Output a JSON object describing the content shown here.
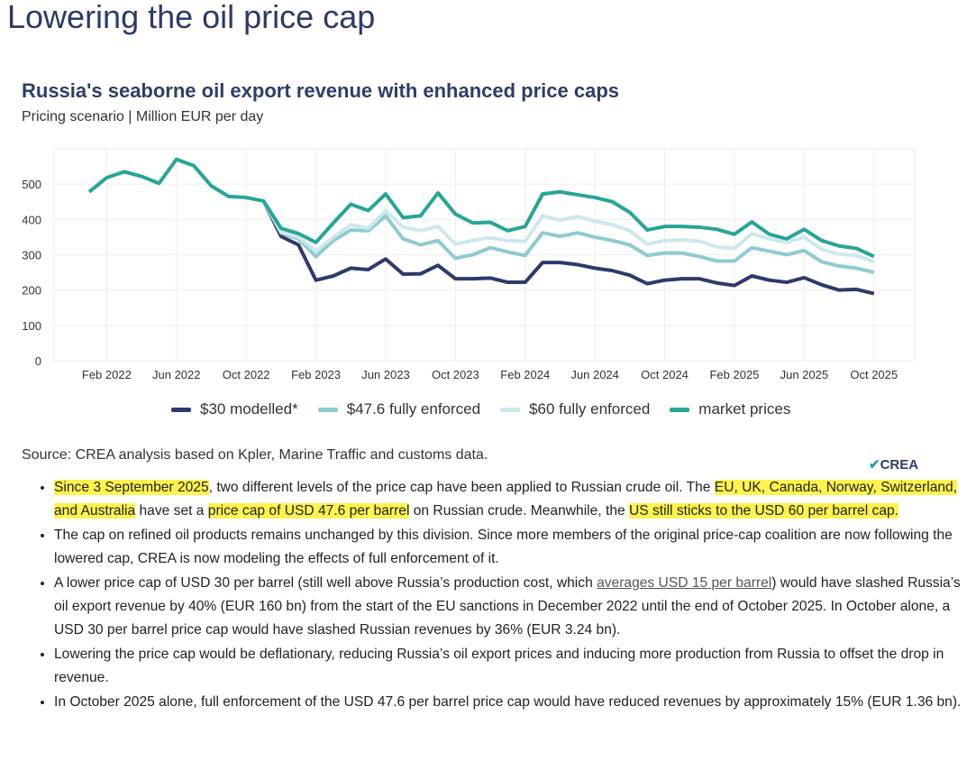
{
  "page_title": "Lowering the oil price cap",
  "chart_data": {
    "type": "line",
    "title": "Russia's seaborne oil export revenue with enhanced price caps",
    "subtitle": "Pricing scenario | Million EUR per day",
    "ylim": [
      0,
      600
    ],
    "yticks": [
      0,
      100,
      200,
      300,
      400,
      500
    ],
    "grid": true,
    "legend_position": "bottom",
    "x": [
      "2022-01",
      "2022-02",
      "2022-03",
      "2022-04",
      "2022-05",
      "2022-06",
      "2022-07",
      "2022-08",
      "2022-09",
      "2022-10",
      "2022-11",
      "2022-12",
      "2023-01",
      "2023-02",
      "2023-03",
      "2023-04",
      "2023-05",
      "2023-06",
      "2023-07",
      "2023-08",
      "2023-09",
      "2023-10",
      "2023-11",
      "2023-12",
      "2024-01",
      "2024-02",
      "2024-03",
      "2024-04",
      "2024-05",
      "2024-06",
      "2024-07",
      "2024-08",
      "2024-09",
      "2024-10",
      "2024-11",
      "2024-12",
      "2025-01",
      "2025-02",
      "2025-03",
      "2025-04",
      "2025-05",
      "2025-06",
      "2025-07",
      "2025-08",
      "2025-09",
      "2025-10"
    ],
    "xtick_labels": [
      "Feb 2022",
      "Jun 2022",
      "Oct 2022",
      "Feb 2023",
      "Jun 2023",
      "Oct 2023",
      "Feb 2024",
      "Jun 2024",
      "Oct 2024",
      "Feb 2025",
      "Jun 2025",
      "Oct 2025"
    ],
    "xtick_months": [
      "2022-02",
      "2022-06",
      "2022-10",
      "2023-02",
      "2023-06",
      "2023-10",
      "2024-02",
      "2024-06",
      "2024-10",
      "2025-02",
      "2025-06",
      "2025-10"
    ],
    "series": [
      {
        "name": "$30 modelled*",
        "color": "#2e3a6b",
        "values": [
          null,
          null,
          null,
          null,
          null,
          null,
          null,
          null,
          null,
          null,
          452,
          352,
          328,
          228,
          240,
          262,
          258,
          288,
          245,
          246,
          270,
          232,
          232,
          234,
          222,
          222,
          278,
          278,
          272,
          262,
          255,
          242,
          218,
          228,
          232,
          232,
          220,
          213,
          240,
          228,
          222,
          235,
          215,
          200,
          202,
          190
        ]
      },
      {
        "name": "$47.6 fully enforced",
        "color": "#8ecbd0",
        "values": [
          null,
          null,
          null,
          null,
          null,
          null,
          null,
          null,
          null,
          null,
          452,
          362,
          345,
          295,
          340,
          370,
          368,
          410,
          345,
          328,
          340,
          290,
          300,
          320,
          308,
          298,
          362,
          352,
          362,
          350,
          340,
          328,
          298,
          305,
          305,
          295,
          282,
          282,
          320,
          310,
          300,
          312,
          280,
          268,
          262,
          250
        ]
      },
      {
        "name": "$60 fully enforced",
        "color": "#cde8ec",
        "values": [
          null,
          null,
          null,
          null,
          null,
          null,
          null,
          null,
          null,
          null,
          452,
          365,
          350,
          310,
          350,
          385,
          375,
          425,
          378,
          368,
          380,
          330,
          340,
          348,
          340,
          338,
          410,
          398,
          408,
          395,
          385,
          368,
          330,
          340,
          342,
          338,
          322,
          318,
          360,
          345,
          335,
          350,
          315,
          302,
          298,
          280
        ]
      },
      {
        "name": "market prices",
        "color": "#27a596",
        "values": [
          478,
          518,
          535,
          522,
          502,
          570,
          552,
          495,
          465,
          462,
          452,
          375,
          360,
          335,
          390,
          443,
          425,
          472,
          405,
          410,
          475,
          415,
          390,
          392,
          368,
          380,
          472,
          478,
          470,
          462,
          450,
          420,
          370,
          380,
          380,
          378,
          372,
          358,
          393,
          358,
          345,
          372,
          340,
          325,
          318,
          295
        ]
      }
    ]
  },
  "source": "Source: CREA analysis based on Kpler, Marine Traffic and customs data.",
  "logo": {
    "mark": "✔",
    "text": "CREA"
  },
  "bullets": [
    [
      {
        "t": "Since 3 September 2025",
        "hl": true
      },
      {
        "t": ", two different levels of the price cap have been applied to Russian crude oil. The "
      },
      {
        "t": "EU, UK, Canada, Norway, Switzerland, and Australia",
        "hl": true
      },
      {
        "t": " have set a "
      },
      {
        "t": "price cap of USD 47.6 per barrel",
        "hl": true
      },
      {
        "t": " on Russian crude. Meanwhile, the "
      },
      {
        "t": "US still sticks to the USD 60 per barrel cap.",
        "hl": true
      }
    ],
    [
      {
        "t": "The cap on refined oil products remains unchanged by this division. Since more members of the original price-cap coalition are now following the lowered cap, CREA is now modeling the effects of full enforcement of it."
      }
    ],
    [
      {
        "t": "A lower price cap of USD 30 per barrel (still well above Russia’s production cost, which "
      },
      {
        "t": "averages USD 15 per barrel",
        "link": true
      },
      {
        "t": ") would have slashed Russia’s oil export revenue by 40% (EUR 160 bn) from the start of the EU sanctions in December 2022 until the end of October 2025. In October alone, a USD 30 per barrel price cap would have slashed Russian revenues by 36% (EUR 3.24 bn)."
      }
    ],
    [
      {
        "t": "Lowering the price cap would be deflationary, reducing Russia’s oil export prices and inducing more production from Russia to offset the drop in revenue."
      }
    ],
    [
      {
        "t": "In October 2025 alone, full enforcement of the USD 47.6 per barrel price cap would have reduced revenues by approximately 15% (EUR 1.36 bn)."
      }
    ]
  ]
}
